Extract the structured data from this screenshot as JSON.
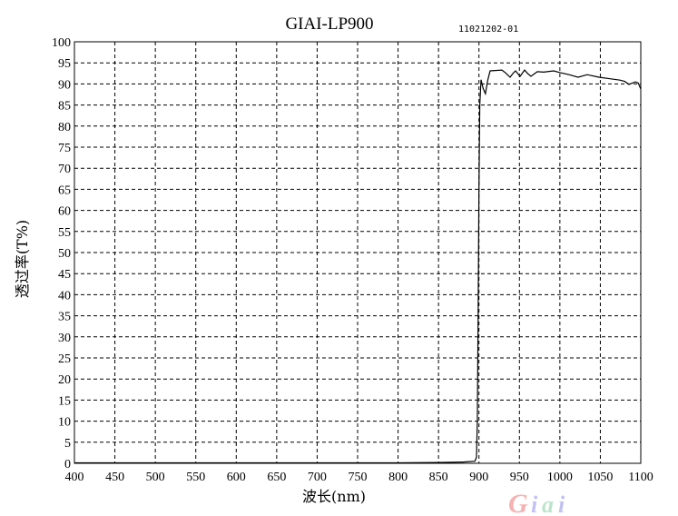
{
  "chart_data": {
    "type": "line",
    "title": "GIAI-LP900",
    "annotation": "11021202-01",
    "xlabel": "波长(nm)",
    "ylabel": "透过率(T%)",
    "xlim": [
      400,
      1100
    ],
    "ylim": [
      0,
      100
    ],
    "xticks": [
      400,
      450,
      500,
      550,
      600,
      650,
      700,
      750,
      800,
      850,
      900,
      950,
      1000,
      1050,
      1100
    ],
    "yticks": [
      0,
      5,
      10,
      15,
      20,
      25,
      30,
      35,
      40,
      45,
      50,
      55,
      60,
      65,
      70,
      75,
      80,
      85,
      90,
      95,
      100
    ],
    "grid": true,
    "grid_style": "dashed",
    "line_color": "#000000",
    "series": [
      {
        "x": [
          400,
          500,
          600,
          700,
          800,
          850,
          880,
          895,
          897,
          898,
          899,
          900,
          901,
          902.6,
          905,
          908,
          911,
          913.8,
          920,
          928.4,
          933,
          938.5,
          942,
          945.2,
          950.8,
          956.4,
          960,
          964.3,
          972.1,
          980,
          992.3,
          1000.2,
          1011.4,
          1022.6,
          1033.8,
          1048.4,
          1063,
          1074.2,
          1080,
          1085.4,
          1093.3,
          1097,
          1100
        ],
        "y": [
          0.1,
          0.1,
          0.1,
          0.1,
          0.1,
          0.2,
          0.3,
          0.5,
          1.5,
          10,
          35,
          65,
          85,
          91,
          89,
          87.7,
          91,
          93.1,
          93.2,
          93.3,
          92.6,
          91.6,
          92.5,
          93.1,
          91.8,
          93.3,
          92.5,
          91.8,
          92.9,
          92.8,
          93.1,
          92.7,
          92.2,
          91.6,
          92.2,
          91.6,
          91.2,
          90.9,
          90.6,
          89.9,
          90.5,
          90.2,
          88.8
        ]
      }
    ],
    "watermark": {
      "text": "Giai",
      "letter_colors": [
        "#f08080",
        "#9999ee",
        "#8fd4a8",
        "#9999ee"
      ]
    }
  }
}
